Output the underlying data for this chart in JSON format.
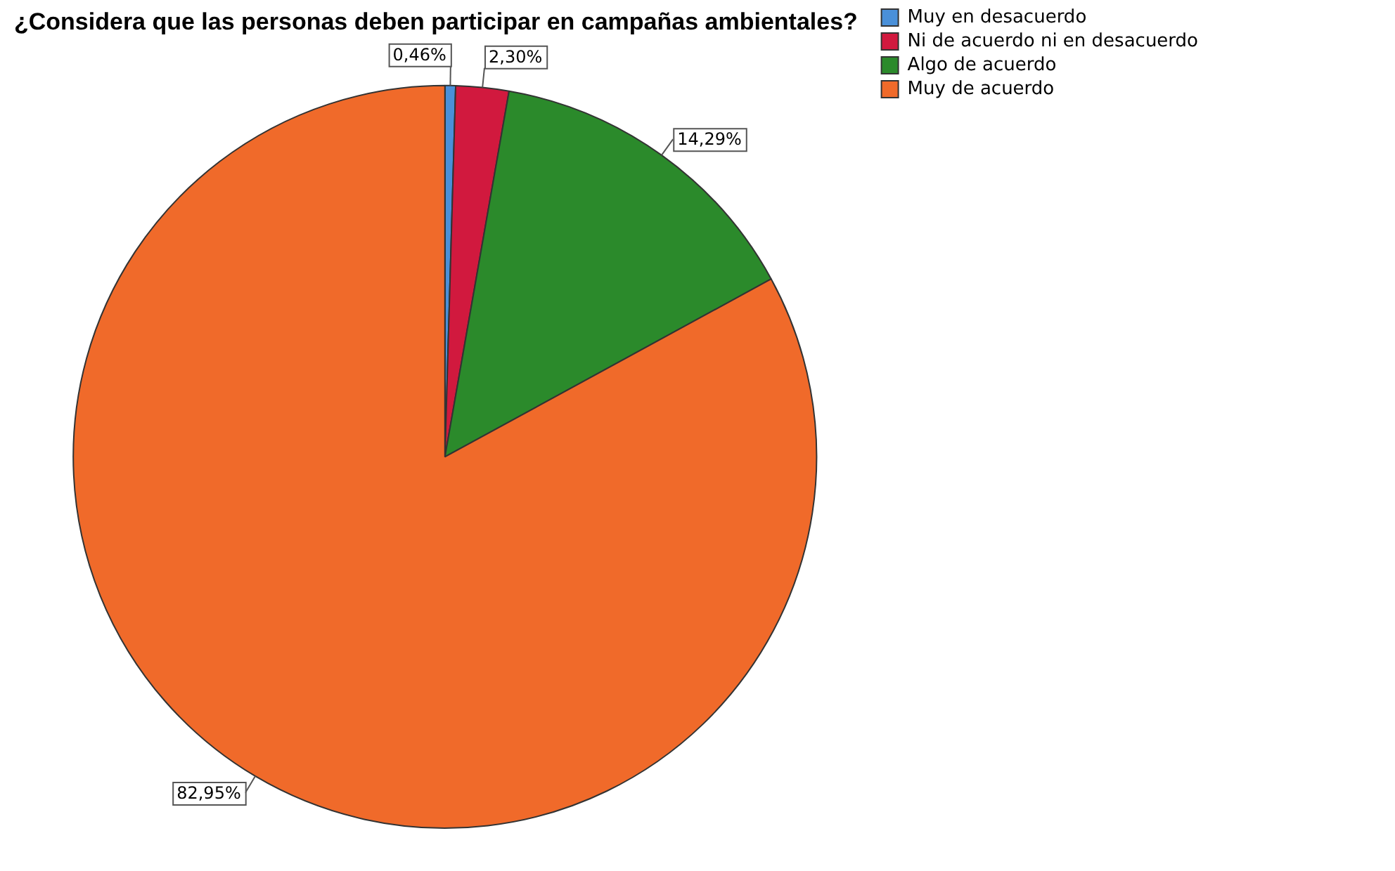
{
  "chart_data": {
    "type": "pie",
    "title": "¿Considera que las personas deben participar en campañas ambientales?",
    "categories": [
      "Muy en desacuerdo",
      "Ni de acuerdo ni en desacuerdo",
      "Algo de acuerdo",
      "Muy de acuerdo"
    ],
    "values": [
      0.46,
      2.3,
      14.29,
      82.95
    ],
    "value_labels": [
      "0,46%",
      "2,30%",
      "14,29%",
      "82,95%"
    ],
    "colors": [
      "#4a90d9",
      "#d1193e",
      "#2b8a2b",
      "#f06a2a"
    ],
    "legend": "top right"
  }
}
